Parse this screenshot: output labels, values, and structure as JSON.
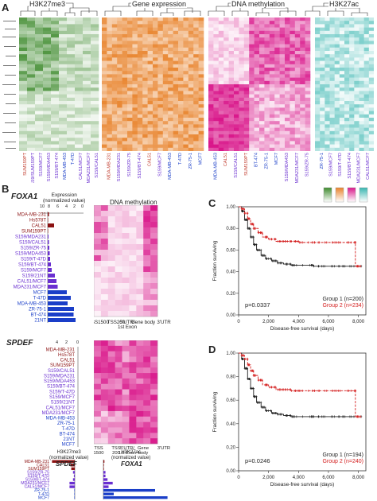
{
  "panel_a": {
    "letter": "A",
    "groups": [
      {
        "label": "H3K27me3",
        "color": "#3d8a2c"
      },
      {
        "label": "Gene expression",
        "color": "#e8822a"
      },
      {
        "label": "DNA methylation",
        "color": "#d9168a"
      },
      {
        "label": "H3K27ac",
        "color": "#37b6b0"
      }
    ],
    "sample_groups": [
      [
        "SUM159PT",
        "S159/SUM159PT",
        "S159/MCF7",
        "S159/MDA453",
        "S159/BT-474",
        "MDA-MB-453",
        "T-47D",
        "CAL51/MCF7",
        "MDA231/MCF7",
        "S159/CAL51"
      ],
      [
        "MDA-MB-231",
        "S159/MDA231",
        "S159/ZR-75",
        "S159/BT-474",
        "CAL51",
        "S159/MCF7",
        "MDA-MB-453",
        "T-47D",
        "ZR-75-1",
        "MCF7"
      ],
      [
        "MDA-MB-453",
        "CAL51",
        "S159/CAL51",
        "SUM159PT",
        "BT-474",
        "ZR-75-1",
        "MCF7",
        "S159/MDA453",
        "MDA231/MCF7",
        "S159/ZR-75"
      ],
      [
        "ZR-75-1",
        "S159/MCF7",
        "S159/T-47D",
        "S159/BT-474",
        "MDA231/MCF7",
        "CAL51/MCF7"
      ]
    ]
  },
  "panel_b": {
    "letter": "B",
    "foxa1": {
      "title": "FOXA1",
      "expr_label": "Expression\n(normalized value)",
      "ticks": [
        "10",
        "8",
        "6",
        "4",
        "2",
        "0"
      ],
      "meth_title": "DNA methylation",
      "meth_xlabels": [
        "TSS1500",
        "TSS200",
        "5'UTR/\n1st Exon",
        "Gene body",
        "3'UTR"
      ],
      "samples": [
        "MDA-MB-231",
        "Hs578T",
        "CAL51",
        "SUM159PT",
        "S159/MDA231",
        "S159/CAL51",
        "S159/ZR-75",
        "S159/MDA453",
        "S159/T-47D",
        "S159/BT-474",
        "S159/MCF7",
        "S159/21NT",
        "CAL51/MCF7",
        "MDA231/MCF7",
        "MCF7",
        "T-47D",
        "MDA-MB-453",
        "ZR-75-1",
        "BT-474",
        "21NT"
      ],
      "sample_colors": [
        "#8b1111",
        "#8b1111",
        "#8b1111",
        "#8b1111",
        "#6a2fd0",
        "#6a2fd0",
        "#6a2fd0",
        "#6a2fd0",
        "#6a2fd0",
        "#6a2fd0",
        "#6a2fd0",
        "#6a2fd0",
        "#6a2fd0",
        "#6a2fd0",
        "#1a3ec8",
        "#1a3ec8",
        "#1a3ec8",
        "#1a3ec8",
        "#1a3ec8",
        "#1a3ec8"
      ],
      "values": [
        0.3,
        0.1,
        1.6,
        0.1,
        0.2,
        0.3,
        0.4,
        0.5,
        0.6,
        0.8,
        1.0,
        1.8,
        2.2,
        2.5,
        4.8,
        5.8,
        5.0,
        6.6,
        6.5,
        7.0
      ]
    },
    "spdef": {
      "title": "SPDEF",
      "ticks": [
        "4",
        "2",
        "0"
      ],
      "meth_xlabels": [
        "TSS\n1500",
        "TSS\n200",
        "5'UTR/\n1st Exon",
        "Gene\nbody",
        "3'UTR"
      ],
      "samples": [
        "MDA-MB-231",
        "Hs578T",
        "CAL51",
        "SUM159PT",
        "S159/CAL51",
        "S159/MDA231",
        "S159/MDA453",
        "S159/BT-474",
        "S159/T-47D",
        "S159/MCF7",
        "S159/21NT",
        "CAL51/MCF7",
        "MDA231/MCF7",
        "MDA-MB-453",
        "ZR-75-1",
        "T-47D",
        "BT-474",
        "21NT",
        "MCF7"
      ],
      "sample_colors": [
        "#8b1111",
        "#8b1111",
        "#8b1111",
        "#8b1111",
        "#6a2fd0",
        "#6a2fd0",
        "#6a2fd0",
        "#6a2fd0",
        "#6a2fd0",
        "#6a2fd0",
        "#6a2fd0",
        "#6a2fd0",
        "#6a2fd0",
        "#1a3ec8",
        "#1a3ec8",
        "#1a3ec8",
        "#1a3ec8",
        "#1a3ec8",
        "#1a3ec8"
      ]
    },
    "chip": {
      "h3k27me3_label": "H3K27me3\n(normalized value)",
      "h3k27ac_label": "H3K27ac\n(normalized value)",
      "me3_ticks": [
        "2",
        "1",
        "0"
      ],
      "ac_ticks": [
        "0",
        "1",
        "2",
        "3",
        "4",
        "5",
        "6"
      ],
      "gene1": "SPDEF",
      "gene2": "FOXA1",
      "samples": [
        "MDA-MB-231",
        "CAL51",
        "SUM159PT",
        "S159/ZR-75",
        "S159/T-47D",
        "S159/BT-474",
        "MDA231/MCF7",
        "CAL51/MCF7",
        "ZR-75-1",
        "T-47D",
        "MCF7"
      ],
      "sample_colors": [
        "#8b1111",
        "#8b1111",
        "#8b1111",
        "#6a2fd0",
        "#6a2fd0",
        "#6a2fd0",
        "#6a2fd0",
        "#6a2fd0",
        "#1a3ec8",
        "#1a3ec8",
        "#1a3ec8"
      ],
      "me3_values": [
        2.6,
        0.5,
        0.4,
        0.2,
        0.1,
        0.2,
        0.6,
        0.6,
        0.05,
        0.05,
        0.05
      ],
      "ac_values": [
        0.1,
        0.05,
        0.05,
        0.2,
        0.2,
        0.4,
        0.9,
        0.5,
        5.0,
        1.0,
        6.2
      ]
    }
  },
  "chart_data": [
    {
      "type": "line",
      "panel": "C",
      "ylabel": "Fraction surviving",
      "xlabel": "Disease-free survival (days)",
      "xticks": [
        "0",
        "2,000",
        "4,000",
        "6,000",
        "8,000"
      ],
      "yticks": [
        "0.00",
        "0.20",
        "0.40",
        "0.60",
        "0.80",
        "1.00"
      ],
      "xlim": [
        0,
        8500
      ],
      "ylim": [
        0,
        1.0
      ],
      "pvalue": "p=0.0337",
      "series": [
        {
          "name": "Group 1 (n=200)",
          "color": "#222222",
          "x": [
            0,
            200,
            400,
            600,
            800,
            1000,
            1200,
            1500,
            1800,
            2200,
            2600,
            3000,
            3500,
            4000,
            5000,
            6000,
            7000,
            8200
          ],
          "y": [
            1.0,
            0.96,
            0.88,
            0.8,
            0.72,
            0.65,
            0.6,
            0.55,
            0.52,
            0.5,
            0.48,
            0.47,
            0.46,
            0.46,
            0.45,
            0.45,
            0.45,
            0.45
          ]
        },
        {
          "name": "Group 2 (n=234)",
          "color": "#d42020",
          "x": [
            0,
            200,
            400,
            600,
            800,
            1000,
            1300,
            1600,
            2000,
            2500,
            3000,
            3500,
            4000,
            5000,
            6000,
            7000,
            7800,
            7800,
            8200
          ],
          "y": [
            1.0,
            0.98,
            0.94,
            0.89,
            0.84,
            0.8,
            0.76,
            0.72,
            0.7,
            0.68,
            0.68,
            0.68,
            0.67,
            0.67,
            0.67,
            0.67,
            0.67,
            0.45,
            0.45
          ]
        }
      ]
    },
    {
      "type": "line",
      "panel": "D",
      "ylabel": "Fraction surviving",
      "xlabel": "Disease-free survival (days)",
      "xticks": [
        "0",
        "2,000",
        "4,000",
        "6,000",
        "8,000"
      ],
      "yticks": [
        "0.00",
        "0.20",
        "0.40",
        "0.60",
        "0.80",
        "1.00"
      ],
      "xlim": [
        0,
        8500
      ],
      "ylim": [
        0,
        1.0
      ],
      "pvalue": "p=0.0246",
      "series": [
        {
          "name": "Group 1 (n=194)",
          "color": "#222222",
          "x": [
            0,
            200,
            400,
            600,
            800,
            1000,
            1200,
            1500,
            1800,
            2200,
            2600,
            3000,
            3500,
            4000,
            5000,
            6000,
            7000,
            8200
          ],
          "y": [
            1.0,
            0.95,
            0.87,
            0.78,
            0.7,
            0.63,
            0.58,
            0.54,
            0.51,
            0.49,
            0.48,
            0.47,
            0.46,
            0.46,
            0.46,
            0.46,
            0.46,
            0.46
          ]
        },
        {
          "name": "Group 2 (n=240)",
          "color": "#d42020",
          "x": [
            0,
            200,
            400,
            600,
            800,
            1000,
            1300,
            1600,
            2000,
            2500,
            3000,
            3500,
            4000,
            5000,
            6000,
            7000,
            7800,
            7800,
            8200
          ],
          "y": [
            1.0,
            0.98,
            0.95,
            0.9,
            0.85,
            0.81,
            0.77,
            0.73,
            0.71,
            0.69,
            0.69,
            0.68,
            0.68,
            0.68,
            0.68,
            0.68,
            0.68,
            0.46,
            0.46
          ]
        }
      ]
    }
  ]
}
